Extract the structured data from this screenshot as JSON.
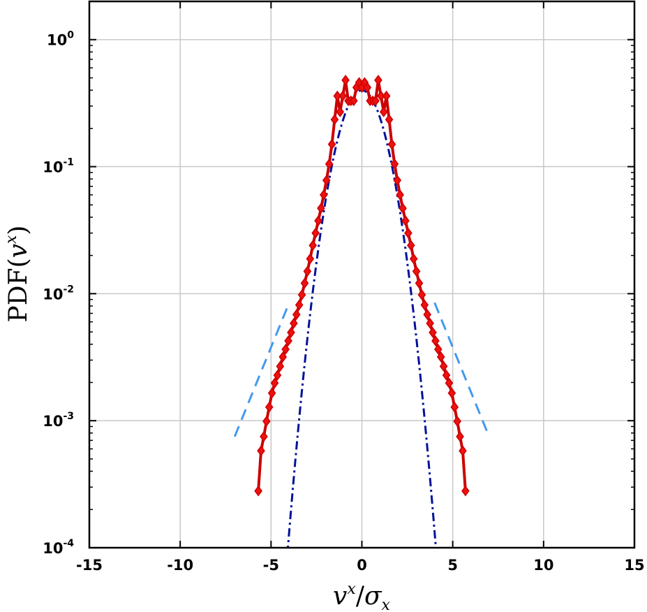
{
  "chart_data": {
    "type": "line",
    "title": "",
    "xlabel": "v^x / σ_x",
    "ylabel": "PDF(v^x)",
    "xlabel_parts": {
      "v": "v",
      "sup": "x",
      "slash": "/",
      "sigma": "σ",
      "sub": "x"
    },
    "ylabel_parts": {
      "pdf": "PDF(",
      "v": "v",
      "sup": "x",
      "close": ")"
    },
    "xlim": [
      -15,
      15
    ],
    "ylim": [
      0.0001,
      2
    ],
    "yscale": "log",
    "grid": true,
    "xticks": [
      -15,
      -10,
      -5,
      0,
      5,
      10,
      15
    ],
    "xtick_labels": [
      "-15",
      "-10",
      "-5",
      "0",
      "5",
      "10",
      "15"
    ],
    "yticks": [
      0.0001,
      0.001,
      0.01,
      0.1,
      1
    ],
    "ytick_labels": [
      {
        "base": "10",
        "exp": "-4"
      },
      {
        "base": "10",
        "exp": "-3"
      },
      {
        "base": "10",
        "exp": "-2"
      },
      {
        "base": "10",
        "exp": "-1"
      },
      {
        "base": "10",
        "exp": "0"
      }
    ],
    "series": [
      {
        "style": "solid-diamond-markers",
        "color": "#cc0000",
        "marker_color": "#ee1111",
        "x": [
          -5.7,
          -5.55,
          -5.4,
          -5.25,
          -5.1,
          -4.95,
          -4.8,
          -4.65,
          -4.5,
          -4.35,
          -4.2,
          -4.05,
          -3.9,
          -3.75,
          -3.6,
          -3.45,
          -3.3,
          -3.15,
          -3.0,
          -2.85,
          -2.7,
          -2.55,
          -2.4,
          -2.25,
          -2.1,
          -1.95,
          -1.8,
          -1.65,
          -1.5,
          -1.35,
          -1.2,
          -1.05,
          -0.9,
          -0.75,
          -0.6,
          -0.45,
          -0.3,
          -0.15,
          0.0,
          0.15,
          0.3,
          0.45,
          0.6,
          0.75,
          0.9,
          1.05,
          1.2,
          1.35,
          1.5,
          1.65,
          1.8,
          1.95,
          2.1,
          2.25,
          2.4,
          2.55,
          2.7,
          2.85,
          3.0,
          3.15,
          3.3,
          3.45,
          3.6,
          3.75,
          3.9,
          4.05,
          4.2,
          4.35,
          4.5,
          4.65,
          4.8,
          4.95,
          5.1,
          5.25,
          5.4,
          5.55,
          5.7
        ],
        "y": [
          0.00028,
          0.00058,
          0.00075,
          0.00099,
          0.00128,
          0.00165,
          0.00198,
          0.00228,
          0.00268,
          0.00318,
          0.00365,
          0.00425,
          0.00495,
          0.00585,
          0.00685,
          0.00815,
          0.0098,
          0.0121,
          0.015,
          0.0188,
          0.024,
          0.03,
          0.0375,
          0.047,
          0.06,
          0.078,
          0.105,
          0.15,
          0.235,
          0.36,
          0.27,
          0.36,
          0.48,
          0.33,
          0.33,
          0.33,
          0.42,
          0.46,
          0.42,
          0.46,
          0.42,
          0.33,
          0.33,
          0.33,
          0.48,
          0.36,
          0.27,
          0.36,
          0.235,
          0.15,
          0.105,
          0.078,
          0.06,
          0.047,
          0.0375,
          0.03,
          0.024,
          0.0188,
          0.015,
          0.0121,
          0.0098,
          0.00815,
          0.00685,
          0.00585,
          0.00495,
          0.00425,
          0.00365,
          0.00318,
          0.00268,
          0.00228,
          0.00198,
          0.00165,
          0.00128,
          0.00099,
          0.00075,
          0.00058,
          0.00028
        ]
      },
      {
        "style": "dash-dot",
        "color": "#001199",
        "kind": "gaussian",
        "mean": 0,
        "sigma": 1,
        "x_range": [
          -4.1,
          4.1
        ]
      },
      {
        "style": "dashed",
        "color": "#4499ee",
        "kind": "exponential-tail-guide-left",
        "x": [
          -7.0,
          -4.0
        ],
        "y": [
          0.00075,
          0.0085
        ]
      },
      {
        "style": "dashed",
        "color": "#4499ee",
        "kind": "exponential-tail-guide-right",
        "x": [
          4.0,
          7.0
        ],
        "y": [
          0.0085,
          0.00075
        ]
      }
    ]
  }
}
